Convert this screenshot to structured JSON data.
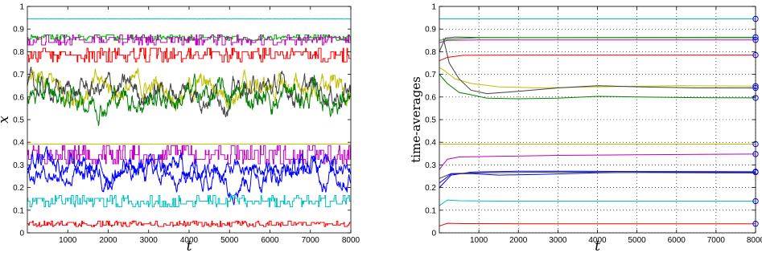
{
  "chart_data": [
    {
      "type": "line",
      "title": "",
      "xlabel": "t",
      "ylabel": "x",
      "xlim": [
        0,
        8000
      ],
      "ylim": [
        0,
        1
      ],
      "xticks": [
        "1000",
        "2000",
        "3000",
        "4000",
        "5000",
        "6000",
        "7000",
        "8000"
      ],
      "yticks": [
        "0",
        "0.1",
        "0.2",
        "0.3",
        "0.4",
        "0.5",
        "0.6",
        "0.7",
        "0.8",
        "0.9",
        "1"
      ],
      "grid": false,
      "series": [
        {
          "color": "#00bfbf",
          "mean": 0.945,
          "band": 0.004,
          "style": "flat"
        },
        {
          "color": "#00b000",
          "mean": 0.862,
          "band": 0.012,
          "style": "step"
        },
        {
          "color": "#c000c0",
          "mean": 0.852,
          "band": 0.022,
          "style": "step"
        },
        {
          "color": "#ff0000",
          "mean": 0.785,
          "band": 0.03,
          "style": "step"
        },
        {
          "color": "#bfbf00",
          "mean": 0.64,
          "band": 0.09,
          "style": "noisy"
        },
        {
          "color": "#404040",
          "mean": 0.63,
          "band": 0.09,
          "style": "noisy"
        },
        {
          "color": "#007f00",
          "mean": 0.6,
          "band": 0.1,
          "style": "noisy"
        },
        {
          "color": "#bfbf00",
          "mean": 0.392,
          "band": 0.003,
          "style": "flat"
        },
        {
          "color": "#c000c0",
          "mean": 0.345,
          "band": 0.04,
          "style": "step"
        },
        {
          "color": "#0000ff",
          "mean": 0.275,
          "band": 0.09,
          "style": "noisy"
        },
        {
          "color": "#0000ff",
          "mean": 0.27,
          "band": 0.07,
          "style": "noisy"
        },
        {
          "color": "#00bfbf",
          "mean": 0.14,
          "band": 0.025,
          "style": "step"
        },
        {
          "color": "#ff0000",
          "mean": 0.04,
          "band": 0.012,
          "style": "step"
        }
      ]
    },
    {
      "type": "line",
      "title": "",
      "xlabel": "t",
      "ylabel": "time-averages",
      "xlim": [
        0,
        8000
      ],
      "ylim": [
        0,
        1
      ],
      "xticks": [
        "1000",
        "2000",
        "3000",
        "4000",
        "5000",
        "6000",
        "7000",
        "8000"
      ],
      "yticks": [
        "0",
        "0.1",
        "0.2",
        "0.3",
        "0.4",
        "0.5",
        "0.6",
        "0.7",
        "0.8",
        "0.9",
        "1"
      ],
      "grid": true,
      "marker_color": "#0000ff",
      "series": [
        {
          "color": "#00bfbf",
          "x": [
            0,
            8000
          ],
          "y": [
            0.945,
            0.945
          ]
        },
        {
          "color": "#404040",
          "x": [
            0,
            150,
            400,
            1000,
            3000,
            8000
          ],
          "y": [
            0.8,
            0.86,
            0.865,
            0.863,
            0.862,
            0.862
          ]
        },
        {
          "color": "#00b000",
          "x": [
            0,
            200,
            1000,
            4000,
            8000
          ],
          "y": [
            0.85,
            0.855,
            0.862,
            0.863,
            0.864
          ]
        },
        {
          "color": "#c000c0",
          "x": [
            0,
            200,
            1000,
            4000,
            8000
          ],
          "y": [
            0.84,
            0.85,
            0.852,
            0.852,
            0.852
          ]
        },
        {
          "color": "#ff0000",
          "x": [
            0,
            200,
            600,
            2000,
            8000
          ],
          "y": [
            0.76,
            0.775,
            0.784,
            0.785,
            0.785
          ]
        },
        {
          "color": "#bfbf00",
          "x": [
            0,
            100,
            400,
            800,
            1500,
            2500,
            4000,
            6000,
            8000
          ],
          "y": [
            0.73,
            0.72,
            0.68,
            0.66,
            0.645,
            0.64,
            0.645,
            0.65,
            0.648
          ]
        },
        {
          "color": "#404040",
          "x": [
            100,
            250,
            500,
            800,
            1200,
            2000,
            3000,
            4000,
            5000,
            6500,
            8000
          ],
          "y": [
            0.86,
            0.75,
            0.68,
            0.63,
            0.615,
            0.625,
            0.64,
            0.65,
            0.645,
            0.64,
            0.64
          ]
        },
        {
          "color": "#007f00",
          "x": [
            0,
            200,
            500,
            800,
            1200,
            2000,
            3000,
            4000,
            5000,
            6500,
            8000
          ],
          "y": [
            0.7,
            0.66,
            0.62,
            0.61,
            0.595,
            0.592,
            0.595,
            0.603,
            0.6,
            0.597,
            0.596
          ]
        },
        {
          "color": "#bfbf00",
          "x": [
            0,
            8000
          ],
          "y": [
            0.392,
            0.392
          ]
        },
        {
          "color": "#c000c0",
          "x": [
            0,
            200,
            500,
            1500,
            3000,
            5000,
            8000
          ],
          "y": [
            0.28,
            0.325,
            0.335,
            0.338,
            0.342,
            0.345,
            0.348
          ]
        },
        {
          "color": "#0000ff",
          "x": [
            0,
            300,
            800,
            1200,
            2000,
            3500,
            5000,
            8000
          ],
          "y": [
            0.2,
            0.255,
            0.268,
            0.27,
            0.272,
            0.272,
            0.271,
            0.27
          ]
        },
        {
          "color": "#0000ff",
          "x": [
            0,
            300,
            800,
            1500,
            2500,
            4000,
            5500,
            8000
          ],
          "y": [
            0.22,
            0.26,
            0.262,
            0.255,
            0.258,
            0.265,
            0.268,
            0.268
          ]
        },
        {
          "color": "#404040",
          "x": [
            0,
            300,
            1000,
            3000,
            8000
          ],
          "y": [
            0.24,
            0.262,
            0.265,
            0.268,
            0.264
          ]
        },
        {
          "color": "#00bfbf",
          "x": [
            0,
            200,
            500,
            1500,
            4000,
            8000
          ],
          "y": [
            0.12,
            0.145,
            0.142,
            0.14,
            0.14,
            0.14
          ]
        },
        {
          "color": "#ff0000",
          "x": [
            0,
            200,
            600,
            2000,
            8000
          ],
          "y": [
            0.03,
            0.042,
            0.041,
            0.04,
            0.04
          ]
        }
      ],
      "end_markers_y": [
        0.945,
        0.864,
        0.852,
        0.785,
        0.648,
        0.64,
        0.596,
        0.392,
        0.348,
        0.27,
        0.268,
        0.14,
        0.04
      ]
    }
  ]
}
